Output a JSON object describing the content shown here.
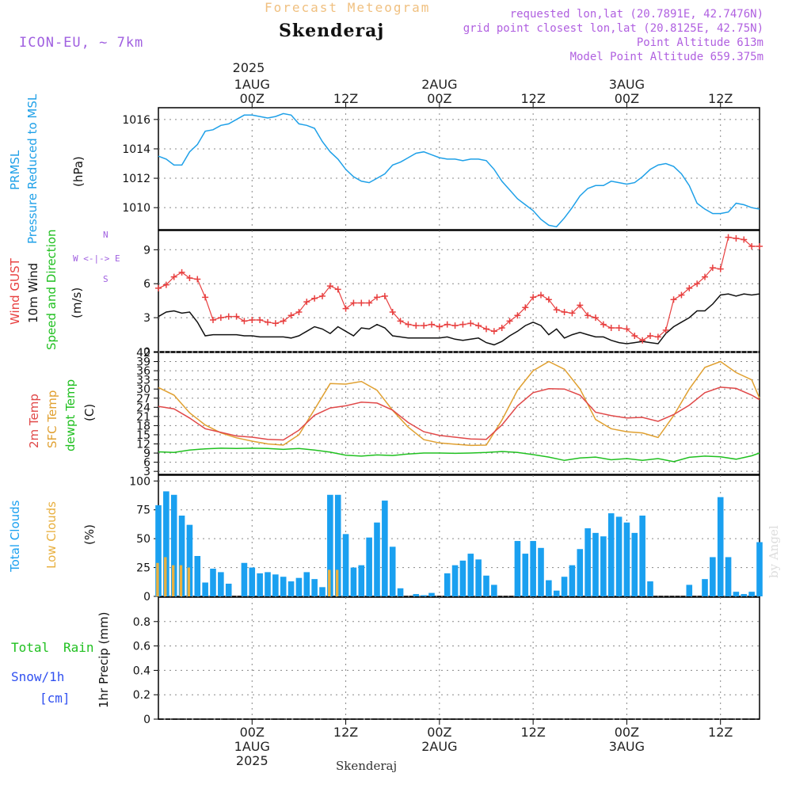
{
  "header": {
    "subtitle": "Forecast Meteogram",
    "title": "Skenderaj",
    "model": "ICON-EU, ~ 7km",
    "requested": "requested lon,lat (20.7891E, 42.7476N)",
    "gridpoint": "grid point closest lon,lat (20.8125E, 42.75N)",
    "point_alt": "Point Altitude 613m",
    "model_alt": "Model Point Altitude 659.375m"
  },
  "time_axis": {
    "top_year": "2025",
    "ticks": [
      {
        "hour": 24,
        "top": [
          "1AUG",
          "00Z"
        ],
        "bottom": [
          "00Z",
          "1AUG",
          "2025"
        ]
      },
      {
        "hour": 36,
        "top": [
          "12Z"
        ],
        "bottom": [
          "12Z"
        ]
      },
      {
        "hour": 48,
        "top": [
          "2AUG",
          "00Z"
        ],
        "bottom": [
          "00Z",
          "2AUG"
        ]
      },
      {
        "hour": 60,
        "top": [
          "12Z"
        ],
        "bottom": [
          "12Z"
        ]
      },
      {
        "hour": 72,
        "top": [
          "3AUG",
          "00Z"
        ],
        "bottom": [
          "00Z",
          "3AUG"
        ]
      },
      {
        "hour": 84,
        "top": [
          "12Z"
        ],
        "bottom": [
          "12Z"
        ]
      }
    ],
    "footer": "Skenderaj",
    "watermark": "by Angel"
  },
  "panels": {
    "pressure": {
      "labels": [
        "PRMSL",
        "Pressure Reduced to MSL",
        "(hPa)"
      ]
    },
    "wind": {
      "labels": [
        "Wind GUST",
        "10m Wind",
        "Speed and Direction",
        "(m/s)"
      ],
      "compass": [
        "N",
        "W <-|-> E",
        "S"
      ]
    },
    "temp": {
      "labels": [
        "2m Temp",
        "SFC Temp",
        "dewpt Temp",
        "(C)"
      ]
    },
    "clouds": {
      "labels": [
        "Total Clouds",
        "Low Clouds",
        "(%)"
      ]
    },
    "precip": {
      "labels": [
        "Total",
        "Rain",
        "Snow/1h",
        "[cm]",
        "1hr Precip (mm)"
      ]
    }
  },
  "colors": {
    "pressure": "#1ea0e8",
    "gust": "#e84040",
    "wind": "#111111",
    "t2m": "#e04848",
    "sfc": "#e0a030",
    "dewpt": "#20c020",
    "total_cloud": "#1aa0f0",
    "low_cloud": "#e8b040",
    "rain_label": "#20c020",
    "snow_label": "#3050f0"
  },
  "chart_data": [
    {
      "type": "line",
      "name": "pressure",
      "ylabel": "(hPa)",
      "yticks": [
        1010,
        1012,
        1014,
        1016
      ],
      "ylim": [
        1008.5,
        1016.8
      ],
      "x_hours": [
        12,
        13,
        14,
        15,
        16,
        17,
        18,
        19,
        20,
        21,
        22,
        23,
        24,
        25,
        26,
        27,
        28,
        29,
        30,
        31,
        32,
        33,
        34,
        35,
        36,
        37,
        38,
        39,
        40,
        41,
        42,
        43,
        44,
        45,
        46,
        47,
        48,
        49,
        50,
        51,
        52,
        53,
        54,
        55,
        56,
        57,
        58,
        59,
        60,
        61,
        62,
        63,
        64,
        65,
        66,
        67,
        68,
        69,
        70,
        71,
        72,
        73,
        74,
        75,
        76,
        77,
        78,
        79,
        80,
        81,
        82,
        83,
        84,
        85,
        86,
        87,
        88,
        89
      ],
      "values": [
        1013.5,
        1013.3,
        1012.9,
        1012.9,
        1013.8,
        1014.3,
        1015.2,
        1015.3,
        1015.6,
        1015.7,
        1016.0,
        1016.3,
        1016.3,
        1016.2,
        1016.1,
        1016.2,
        1016.4,
        1016.3,
        1015.7,
        1015.6,
        1015.4,
        1014.5,
        1013.8,
        1013.3,
        1012.6,
        1012.1,
        1011.8,
        1011.7,
        1012.0,
        1012.3,
        1012.9,
        1013.1,
        1013.4,
        1013.7,
        1013.8,
        1013.6,
        1013.4,
        1013.3,
        1013.3,
        1013.2,
        1013.3,
        1013.3,
        1013.2,
        1012.6,
        1011.8,
        1011.2,
        1010.6,
        1010.2,
        1009.8,
        1009.2,
        1008.8,
        1008.7,
        1009.3,
        1010.0,
        1010.8,
        1011.3,
        1011.5,
        1011.5,
        1011.8,
        1011.7,
        1011.6,
        1011.7,
        1012.1,
        1012.6,
        1012.9,
        1013.0,
        1012.8,
        1012.3,
        1011.5,
        1010.3,
        1009.9,
        1009.6,
        1009.6,
        1009.7,
        1010.3,
        1010.2,
        1010.0,
        1009.9
      ]
    },
    {
      "type": "line",
      "name": "wind",
      "ylabel": "(m/s)",
      "yticks": [
        0,
        3,
        6,
        9
      ],
      "ylim": [
        0,
        10.7
      ],
      "x_hours": [
        12,
        13,
        14,
        15,
        16,
        17,
        18,
        19,
        20,
        21,
        22,
        23,
        24,
        25,
        26,
        27,
        28,
        29,
        30,
        31,
        32,
        33,
        34,
        35,
        36,
        37,
        38,
        39,
        40,
        41,
        42,
        43,
        44,
        45,
        46,
        47,
        48,
        49,
        50,
        51,
        52,
        53,
        54,
        55,
        56,
        57,
        58,
        59,
        60,
        61,
        62,
        63,
        64,
        65,
        66,
        67,
        68,
        69,
        70,
        71,
        72,
        73,
        74,
        75,
        76,
        77,
        78,
        79,
        80,
        81,
        82,
        83,
        84,
        85,
        86,
        87,
        88,
        89
      ],
      "gust": [
        5.6,
        5.9,
        6.6,
        7.0,
        6.5,
        6.4,
        4.8,
        2.8,
        3.0,
        3.1,
        3.1,
        2.7,
        2.8,
        2.8,
        2.6,
        2.5,
        2.7,
        3.2,
        3.5,
        4.4,
        4.7,
        4.9,
        5.8,
        5.5,
        3.8,
        4.3,
        4.3,
        4.3,
        4.8,
        4.9,
        3.5,
        2.7,
        2.4,
        2.3,
        2.3,
        2.4,
        2.2,
        2.4,
        2.3,
        2.4,
        2.5,
        2.3,
        2.0,
        1.8,
        2.1,
        2.7,
        3.2,
        3.9,
        4.8,
        5.0,
        4.6,
        3.7,
        3.5,
        3.4,
        4.1,
        3.2,
        3.0,
        2.4,
        2.1,
        2.1,
        2.0,
        1.4,
        1.0,
        1.4,
        1.3,
        1.9,
        4.6,
        5.0,
        5.6,
        6.0,
        6.6,
        7.4,
        7.3,
        10.1,
        10.0,
        9.9,
        9.3,
        9.3
      ],
      "speed": [
        3.1,
        3.5,
        3.6,
        3.4,
        3.5,
        2.6,
        1.4,
        1.5,
        1.5,
        1.5,
        1.5,
        1.4,
        1.4,
        1.3,
        1.3,
        1.3,
        1.3,
        1.2,
        1.4,
        1.8,
        2.2,
        2.0,
        1.6,
        2.2,
        1.8,
        1.4,
        2.1,
        2.0,
        2.4,
        2.1,
        1.4,
        1.3,
        1.2,
        1.2,
        1.2,
        1.2,
        1.2,
        1.3,
        1.1,
        1.0,
        1.1,
        1.2,
        0.8,
        0.6,
        0.9,
        1.4,
        1.8,
        2.3,
        2.6,
        2.3,
        1.5,
        2.0,
        1.2,
        1.5,
        1.7,
        1.5,
        1.3,
        1.3,
        1.0,
        0.8,
        0.7,
        0.8,
        0.9,
        0.8,
        0.7,
        1.6,
        2.2,
        2.6,
        3.0,
        3.6,
        3.6,
        4.2,
        5.0,
        5.1,
        4.9,
        5.1,
        5.0,
        5.1
      ]
    },
    {
      "type": "line",
      "name": "temperature",
      "ylabel": "(C)",
      "yticks": [
        3,
        6,
        9,
        12,
        15,
        18,
        21,
        24,
        27,
        30,
        33,
        36,
        39,
        42
      ],
      "ylim": [
        2,
        42
      ],
      "x_hours": [
        12,
        14,
        16,
        18,
        20,
        22,
        24,
        26,
        28,
        30,
        32,
        34,
        36,
        38,
        40,
        42,
        44,
        46,
        48,
        50,
        52,
        54,
        56,
        58,
        60,
        62,
        64,
        66,
        68,
        70,
        72,
        74,
        76,
        78,
        80,
        82,
        84,
        86,
        88,
        89
      ],
      "t2m": [
        24.3,
        23.5,
        20.5,
        17.0,
        15.8,
        14.6,
        14.2,
        13.5,
        13.3,
        16.5,
        21.4,
        23.8,
        24.5,
        25.7,
        25.4,
        23.1,
        19.0,
        16.0,
        14.8,
        14.2,
        13.6,
        13.5,
        18.2,
        24.5,
        28.8,
        30.1,
        30.0,
        28.0,
        22.4,
        21.3,
        20.5,
        20.7,
        19.4,
        21.6,
        24.7,
        28.8,
        30.6,
        30.2,
        28.0,
        26.5
      ],
      "sfc": [
        30.5,
        28.0,
        22.2,
        18.2,
        15.6,
        14.0,
        12.9,
        12.0,
        11.6,
        15.0,
        23.3,
        31.8,
        31.6,
        32.5,
        29.6,
        23.0,
        17.5,
        13.4,
        12.3,
        11.9,
        11.5,
        11.6,
        19.8,
        29.6,
        36.0,
        39.0,
        36.5,
        30.0,
        20.0,
        17.0,
        16.0,
        15.6,
        14.1,
        21.3,
        30.0,
        37.1,
        39.0,
        35.4,
        33.0,
        27.0
      ],
      "dewpt": [
        9.4,
        9.2,
        10.0,
        10.4,
        10.6,
        10.5,
        10.6,
        10.5,
        10.2,
        10.5,
        10.0,
        9.3,
        8.3,
        8.0,
        8.4,
        8.2,
        8.7,
        9.0,
        9.0,
        8.9,
        9.0,
        9.2,
        9.5,
        9.2,
        8.5,
        7.7,
        6.6,
        7.4,
        7.7,
        6.8,
        7.2,
        6.6,
        7.2,
        6.2,
        7.6,
        8.0,
        7.8,
        7.0,
        8.1,
        9.0
      ]
    },
    {
      "type": "bar",
      "name": "clouds",
      "ylabel": "(%)",
      "yticks": [
        0,
        25,
        50,
        75,
        100
      ],
      "ylim": [
        0,
        105
      ],
      "x_hours": [
        12,
        13,
        14,
        15,
        16,
        17,
        18,
        19,
        20,
        21,
        22,
        23,
        24,
        25,
        26,
        27,
        28,
        29,
        30,
        31,
        32,
        33,
        34,
        35,
        36,
        37,
        38,
        39,
        40,
        41,
        42,
        43,
        44,
        45,
        46,
        47,
        48,
        49,
        50,
        51,
        52,
        53,
        54,
        55,
        56,
        57,
        58,
        59,
        60,
        61,
        62,
        63,
        64,
        65,
        66,
        67,
        68,
        69,
        70,
        71,
        72,
        73,
        74,
        75,
        76,
        77,
        78,
        79,
        80,
        81,
        82,
        83,
        84,
        85,
        86,
        87,
        88,
        89
      ],
      "total": [
        79,
        91,
        88,
        70,
        62,
        35,
        12,
        24,
        21,
        11,
        0,
        29,
        25,
        20,
        21,
        19,
        17,
        13,
        16,
        21,
        15,
        8,
        88,
        88,
        54,
        25,
        27,
        51,
        64,
        83,
        43,
        7,
        0,
        2,
        1,
        3,
        0,
        20,
        27,
        31,
        37,
        32,
        18,
        10,
        0,
        0,
        48,
        37,
        48,
        42,
        14,
        5,
        17,
        27,
        41,
        59,
        55,
        52,
        72,
        69,
        64,
        55,
        70,
        13,
        0,
        0,
        0,
        0,
        10,
        0,
        15,
        34,
        86,
        34,
        4,
        2,
        4,
        47
      ],
      "low": [
        29,
        34,
        27,
        27,
        25,
        0,
        0,
        0,
        0,
        0,
        0,
        0,
        0,
        0,
        0,
        0,
        0,
        0,
        0,
        0,
        0,
        0,
        23,
        23,
        0,
        0,
        0,
        0,
        0,
        0,
        0,
        0,
        0,
        0,
        0,
        0,
        0,
        0,
        0,
        0,
        0,
        0,
        0,
        0,
        0,
        0,
        0,
        0,
        0,
        0,
        0,
        0,
        0,
        0,
        0,
        0,
        0,
        0,
        0,
        0,
        0,
        0,
        0,
        0,
        0,
        0,
        0,
        0,
        0,
        0,
        0,
        0,
        0,
        0,
        0,
        0,
        0,
        0
      ]
    },
    {
      "type": "line",
      "name": "precip",
      "ylabel": "1hr Precip (mm)",
      "yticks": [
        0,
        0.2,
        0.4,
        0.6,
        0.8
      ],
      "ylim": [
        0,
        1.0
      ],
      "x_hours": [
        12,
        89
      ],
      "values": [
        0,
        0
      ]
    }
  ]
}
